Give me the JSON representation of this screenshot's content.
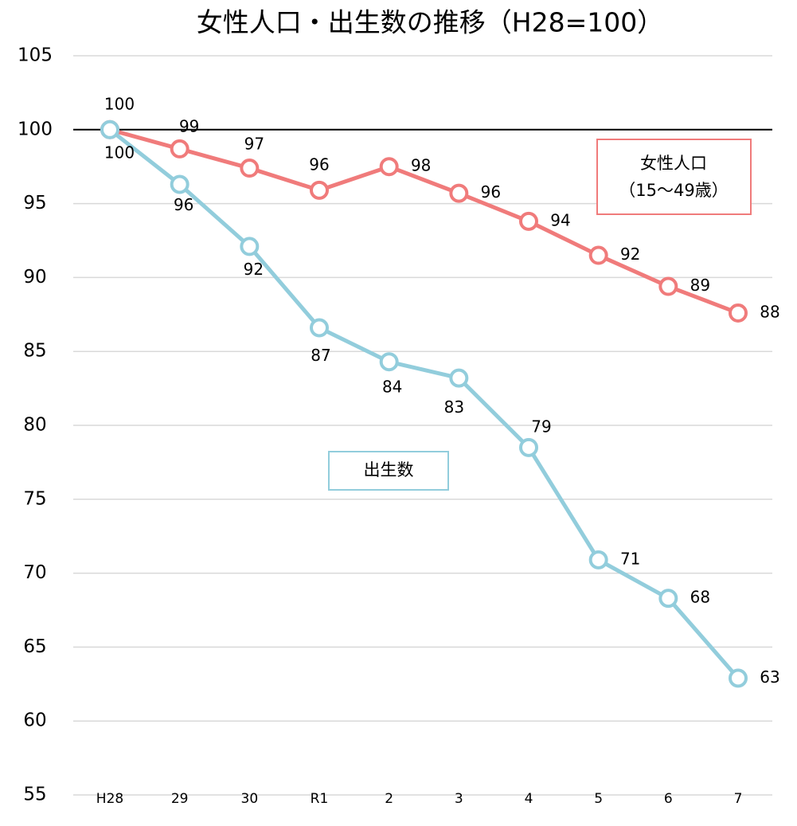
{
  "chart_data": {
    "type": "line",
    "title": "女性人口・出生数の推移（H28=100）",
    "categories": [
      "H28",
      "29",
      "30",
      "R1",
      "2",
      "3",
      "4",
      "5",
      "6",
      "7"
    ],
    "series": [
      {
        "name": "女性人口",
        "name_detail": "（15～49歳）",
        "color": "#f07b7b",
        "values": [
          100,
          98.7,
          97.4,
          95.9,
          97.5,
          95.7,
          93.8,
          91.5,
          89.4,
          87.6
        ],
        "value_labels": [
          100,
          99,
          97,
          96,
          98,
          96,
          94,
          92,
          89,
          88
        ]
      },
      {
        "name": "出生数",
        "color": "#92cddc",
        "values": [
          100,
          96.3,
          92.1,
          86.6,
          84.3,
          83.2,
          78.5,
          70.9,
          68.3,
          62.9
        ],
        "value_labels": [
          100,
          96,
          92,
          87,
          84,
          83,
          79,
          71,
          68,
          63
        ]
      }
    ],
    "ylim": [
      55,
      105
    ],
    "yticks": [
      55,
      60,
      65,
      70,
      75,
      80,
      85,
      90,
      95,
      100,
      105
    ],
    "grid": true,
    "reference_line": 100
  }
}
